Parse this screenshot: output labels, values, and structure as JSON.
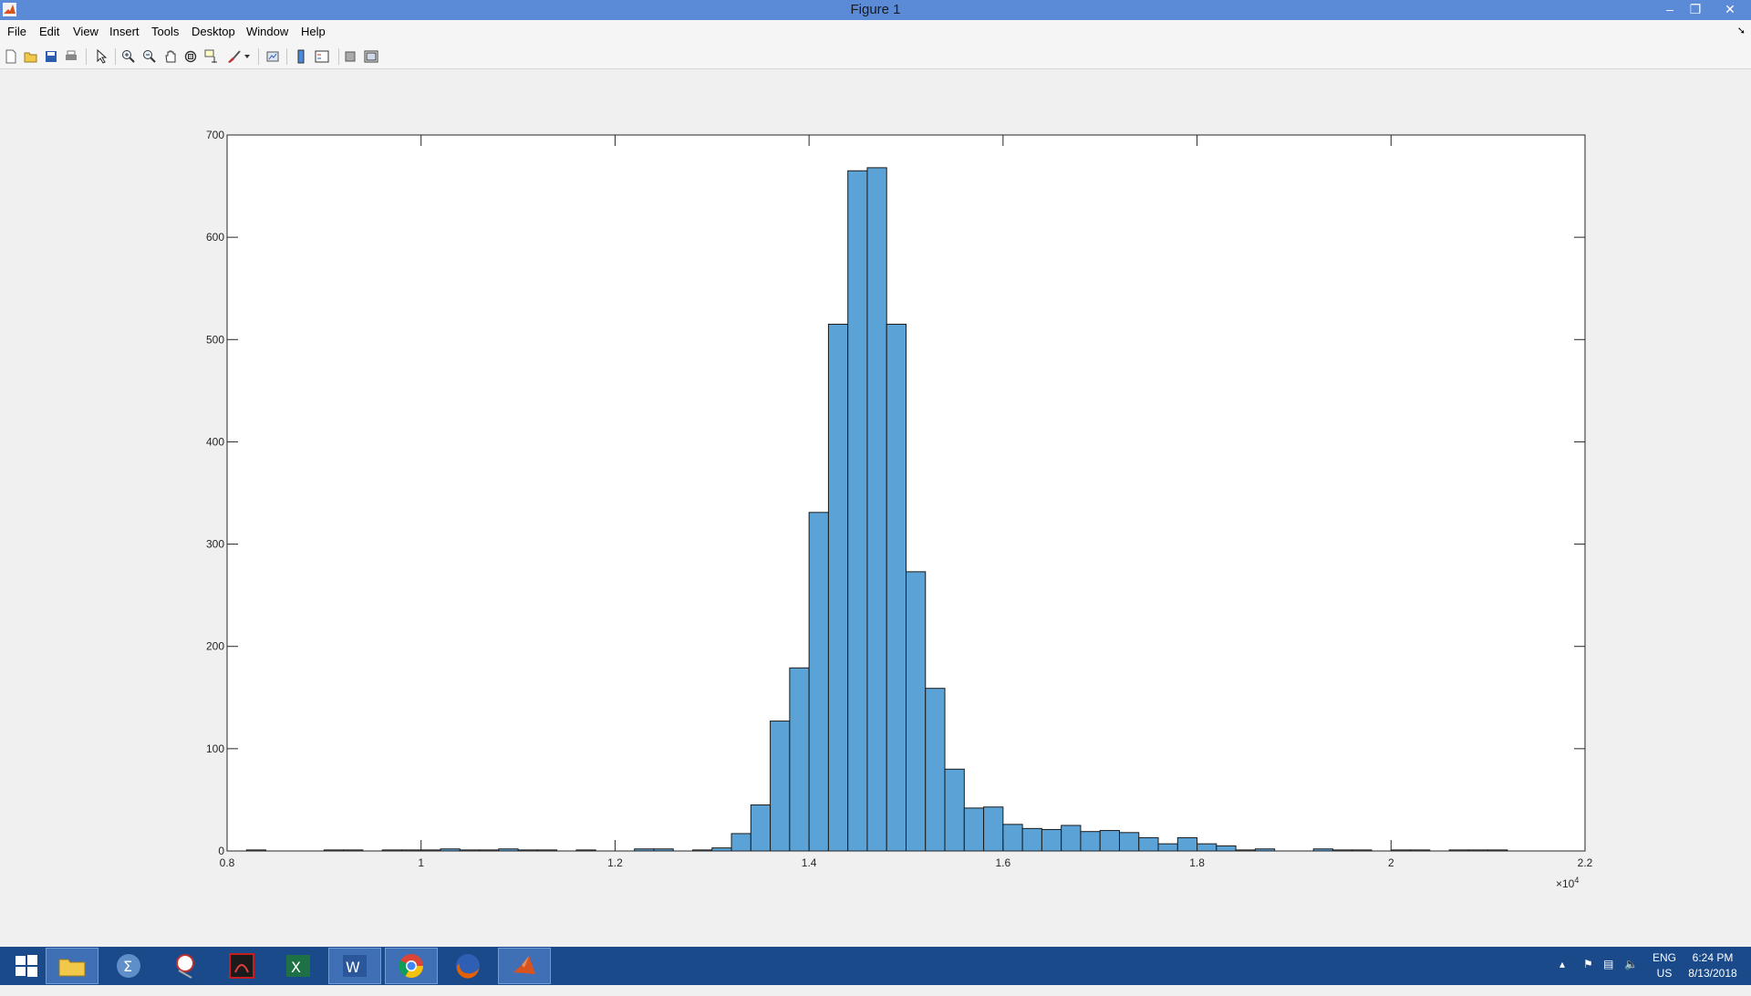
{
  "window": {
    "title": "Figure 1"
  },
  "menu": [
    "File",
    "Edit",
    "View",
    "Insert",
    "Tools",
    "Desktop",
    "Window",
    "Help"
  ],
  "toolbar_icons": [
    "new-figure-icon",
    "open-file-icon",
    "save-icon",
    "print-icon",
    "edit-plot-icon",
    "zoom-in-icon",
    "zoom-out-icon",
    "pan-icon",
    "rotate-3d-icon",
    "data-cursor-icon",
    "brush-icon",
    "link-plot-icon",
    "insert-colorbar-icon",
    "insert-legend-icon",
    "hide-plot-tools-icon",
    "show-plot-tools-icon"
  ],
  "taskbar": {
    "apps": [
      "windows-start-icon",
      "file-explorer-icon",
      "math-app-icon",
      "snipping-tool-icon",
      "adobe-acrobat-icon",
      "excel-icon",
      "word-icon",
      "chrome-icon",
      "firefox-icon",
      "matlab-icon"
    ],
    "lang_line1": "ENG",
    "lang_line2": "US",
    "time": "6:24 PM",
    "date": "8/13/2018"
  },
  "colors": {
    "bar_fill": "#5ba3d6",
    "bar_edge": "#1a1a1a",
    "titlebar": "#5b8bd6",
    "taskbar": "#1a4a8a"
  },
  "chart_data": {
    "type": "bar",
    "title": "",
    "xlabel": "",
    "ylabel": "",
    "x_exponent_label": "×10",
    "x_exponent_power": "4",
    "xlim": [
      0.8,
      2.2
    ],
    "ylim": [
      0,
      700
    ],
    "xticks": [
      0.8,
      1,
      1.2,
      1.4,
      1.6,
      1.8,
      2,
      2.2
    ],
    "xtick_labels": [
      "0.8",
      "1",
      "1.2",
      "1.4",
      "1.6",
      "1.8",
      "2",
      "2.2"
    ],
    "yticks": [
      0,
      100,
      200,
      300,
      400,
      500,
      600,
      700
    ],
    "ytick_labels": [
      "0",
      "100",
      "200",
      "300",
      "400",
      "500",
      "600",
      "700"
    ],
    "bin_start": 0.82,
    "bin_width": 0.02,
    "values": [
      1,
      0,
      0,
      0,
      1,
      1,
      0,
      1,
      1,
      1,
      2,
      1,
      1,
      2,
      1,
      1,
      0,
      1,
      0,
      0,
      2,
      2,
      0,
      1,
      3,
      17,
      45,
      127,
      179,
      331,
      515,
      665,
      668,
      515,
      273,
      159,
      80,
      42,
      43,
      26,
      22,
      21,
      25,
      19,
      20,
      18,
      13,
      7,
      13,
      7,
      5,
      1,
      2,
      0,
      0,
      2,
      1,
      1,
      0,
      1,
      1,
      0,
      1,
      1,
      1
    ]
  }
}
